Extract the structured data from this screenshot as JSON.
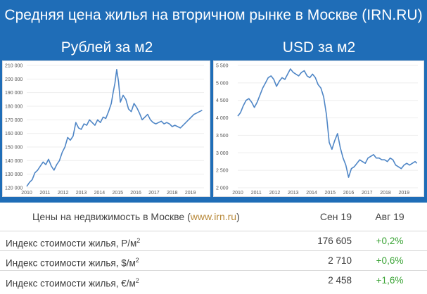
{
  "page": {
    "title": "Средняя цена жилья на вторичном рынке в Москве (IRN.RU)",
    "left_subtitle": "Рублей за м2",
    "right_subtitle": "USD за м2"
  },
  "colors": {
    "background": "#1f6db7",
    "line": "#4f86c6",
    "up": "#3aa335"
  },
  "chart_data": [
    {
      "type": "line",
      "title": "Рублей за м2",
      "ylim": [
        120000,
        210000
      ],
      "xlim": [
        2010,
        2019.75
      ],
      "yticks": [
        {
          "value": 120000,
          "label": "120 000"
        },
        {
          "value": 130000,
          "label": "130 000"
        },
        {
          "value": 140000,
          "label": "140 000"
        },
        {
          "value": 150000,
          "label": "150 000"
        },
        {
          "value": 160000,
          "label": "160 000"
        },
        {
          "value": 170000,
          "label": "170 000"
        },
        {
          "value": 180000,
          "label": "180 000"
        },
        {
          "value": 190000,
          "label": "190 000"
        },
        {
          "value": 200000,
          "label": "200 000"
        },
        {
          "value": 210000,
          "label": "210 000"
        }
      ],
      "xticks": [
        {
          "value": 2010,
          "label": "2010"
        },
        {
          "value": 2011,
          "label": "2011"
        },
        {
          "value": 2012,
          "label": "2012"
        },
        {
          "value": 2013,
          "label": "2013"
        },
        {
          "value": 2014,
          "label": "2014"
        },
        {
          "value": 2015,
          "label": "2015"
        },
        {
          "value": 2016,
          "label": "2016"
        },
        {
          "value": 2017,
          "label": "2017"
        },
        {
          "value": 2018,
          "label": "2018"
        },
        {
          "value": 2019,
          "label": "2019"
        }
      ],
      "x": [
        2010.0,
        2010.15,
        2010.3,
        2010.45,
        2010.6,
        2010.75,
        2010.9,
        2011.05,
        2011.2,
        2011.35,
        2011.5,
        2011.65,
        2011.8,
        2011.95,
        2012.1,
        2012.25,
        2012.4,
        2012.55,
        2012.7,
        2012.85,
        2013.0,
        2013.15,
        2013.3,
        2013.45,
        2013.6,
        2013.75,
        2013.9,
        2014.05,
        2014.2,
        2014.35,
        2014.5,
        2014.65,
        2014.75,
        2014.85,
        2014.95,
        2015.05,
        2015.15,
        2015.3,
        2015.45,
        2015.6,
        2015.75,
        2015.9,
        2016.05,
        2016.2,
        2016.35,
        2016.5,
        2016.65,
        2016.8,
        2016.95,
        2017.1,
        2017.25,
        2017.4,
        2017.55,
        2017.7,
        2017.85,
        2018.0,
        2018.15,
        2018.3,
        2018.45,
        2018.6,
        2018.75,
        2018.9,
        2019.05,
        2019.2,
        2019.35,
        2019.5,
        2019.65
      ],
      "y": [
        121000,
        124000,
        126000,
        131000,
        133000,
        136000,
        139000,
        137000,
        141000,
        136000,
        133000,
        137000,
        140000,
        146000,
        150000,
        157000,
        155000,
        158000,
        168000,
        164000,
        163000,
        167000,
        166000,
        170000,
        168000,
        166000,
        170000,
        168000,
        172000,
        171000,
        176000,
        182000,
        190000,
        197000,
        207000,
        198000,
        183000,
        188000,
        185000,
        178000,
        176000,
        182000,
        179000,
        175000,
        170000,
        172000,
        174000,
        170000,
        168000,
        167000,
        168000,
        169000,
        167000,
        168000,
        167000,
        165000,
        166000,
        165000,
        164000,
        166000,
        168000,
        170000,
        172000,
        174000,
        175000,
        176000,
        177000
      ]
    },
    {
      "type": "line",
      "title": "USD за м2",
      "ylim": [
        2000,
        5500
      ],
      "xlim": [
        2010,
        2019.75
      ],
      "yticks": [
        {
          "value": 2000,
          "label": "2 000"
        },
        {
          "value": 2500,
          "label": "2 500"
        },
        {
          "value": 3000,
          "label": "3 000"
        },
        {
          "value": 3500,
          "label": "3 500"
        },
        {
          "value": 4000,
          "label": "4 000"
        },
        {
          "value": 4500,
          "label": "4 500"
        },
        {
          "value": 5000,
          "label": "5 000"
        },
        {
          "value": 5500,
          "label": "5 500"
        }
      ],
      "xticks": [
        {
          "value": 2010,
          "label": "2010"
        },
        {
          "value": 2011,
          "label": "2011"
        },
        {
          "value": 2012,
          "label": "2012"
        },
        {
          "value": 2013,
          "label": "2013"
        },
        {
          "value": 2014,
          "label": "2014"
        },
        {
          "value": 2015,
          "label": "2015"
        },
        {
          "value": 2016,
          "label": "2016"
        },
        {
          "value": 2017,
          "label": "2017"
        },
        {
          "value": 2018,
          "label": "2018"
        },
        {
          "value": 2019,
          "label": "2019"
        }
      ],
      "x": [
        2010.0,
        2010.15,
        2010.3,
        2010.45,
        2010.6,
        2010.75,
        2010.9,
        2011.05,
        2011.2,
        2011.35,
        2011.5,
        2011.65,
        2011.8,
        2011.95,
        2012.1,
        2012.25,
        2012.4,
        2012.55,
        2012.7,
        2012.85,
        2013.0,
        2013.15,
        2013.3,
        2013.45,
        2013.6,
        2013.75,
        2013.9,
        2014.05,
        2014.2,
        2014.35,
        2014.5,
        2014.65,
        2014.8,
        2014.95,
        2015.1,
        2015.25,
        2015.4,
        2015.55,
        2015.7,
        2015.85,
        2016.0,
        2016.15,
        2016.3,
        2016.45,
        2016.6,
        2016.75,
        2016.9,
        2017.05,
        2017.2,
        2017.35,
        2017.5,
        2017.65,
        2017.8,
        2017.95,
        2018.1,
        2018.25,
        2018.4,
        2018.55,
        2018.7,
        2018.85,
        2019.0,
        2019.15,
        2019.3,
        2019.45,
        2019.6,
        2019.7
      ],
      "y": [
        4050,
        4150,
        4350,
        4500,
        4550,
        4450,
        4300,
        4450,
        4650,
        4850,
        5000,
        5150,
        5200,
        5100,
        4900,
        5050,
        5150,
        5100,
        5250,
        5400,
        5300,
        5250,
        5200,
        5300,
        5350,
        5200,
        5150,
        5250,
        5150,
        4950,
        4850,
        4600,
        4100,
        3300,
        3100,
        3350,
        3550,
        3150,
        2850,
        2650,
        2300,
        2550,
        2600,
        2700,
        2800,
        2750,
        2700,
        2850,
        2900,
        2950,
        2850,
        2850,
        2800,
        2800,
        2750,
        2850,
        2800,
        2650,
        2600,
        2550,
        2650,
        2700,
        2650,
        2700,
        2750,
        2700
      ]
    }
  ],
  "table": {
    "header": {
      "label_prefix": "Цены на недвижимость в Москве (",
      "label_link": "www.irn.ru",
      "label_suffix": ")",
      "col_current": "Сен 19",
      "col_prev": "Авг 19"
    },
    "rows": [
      {
        "label": "Индекс стоимости жилья, Р/м",
        "sup": "2",
        "value": "176 605",
        "change": "+0,2%"
      },
      {
        "label": "Индекс стоимости жилья, $/м",
        "sup": "2",
        "value": "2 710",
        "change": "+0,6%"
      },
      {
        "label": "Индекс стоимости жилья, €/м",
        "sup": "2",
        "value": "2 458",
        "change": "+1,6%"
      }
    ]
  }
}
